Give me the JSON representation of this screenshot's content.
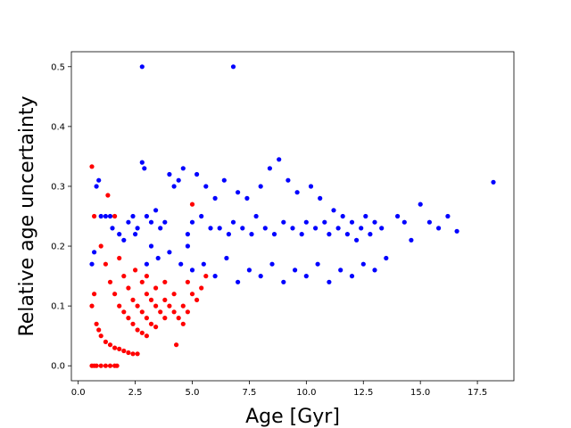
{
  "chart_data": {
    "type": "scatter",
    "xlabel": "Age [Gyr]",
    "ylabel": "Relative age uncertainty",
    "xlim": [
      -0.3,
      19.1
    ],
    "ylim": [
      -0.025,
      0.525
    ],
    "xticks": [
      "0.0",
      "2.5",
      "5.0",
      "7.5",
      "10.0",
      "12.5",
      "15.0",
      "17.5"
    ],
    "xtick_values": [
      0,
      2.5,
      5,
      7.5,
      10,
      12.5,
      15,
      17.5
    ],
    "yticks": [
      "0.0",
      "0.1",
      "0.2",
      "0.3",
      "0.4",
      "0.5"
    ],
    "ytick_values": [
      0,
      0.1,
      0.2,
      0.3,
      0.4,
      0.5
    ],
    "grid": false,
    "series": [
      {
        "color": "#0000ff",
        "points": [
          [
            2.8,
            0.5
          ],
          [
            6.8,
            0.5
          ],
          [
            18.2,
            0.307
          ],
          [
            1.0,
            0.25
          ],
          [
            1.2,
            0.25
          ],
          [
            1.4,
            0.25
          ],
          [
            0.8,
            0.3
          ],
          [
            0.9,
            0.31
          ],
          [
            0.6,
            0.17
          ],
          [
            0.7,
            0.19
          ],
          [
            1.5,
            0.23
          ],
          [
            1.8,
            0.22
          ],
          [
            2.0,
            0.21
          ],
          [
            2.2,
            0.24
          ],
          [
            2.4,
            0.25
          ],
          [
            2.6,
            0.23
          ],
          [
            2.8,
            0.34
          ],
          [
            2.9,
            0.33
          ],
          [
            3.0,
            0.25
          ],
          [
            3.2,
            0.24
          ],
          [
            3.4,
            0.26
          ],
          [
            3.6,
            0.23
          ],
          [
            3.8,
            0.24
          ],
          [
            4.0,
            0.32
          ],
          [
            4.2,
            0.3
          ],
          [
            4.4,
            0.31
          ],
          [
            4.6,
            0.33
          ],
          [
            4.8,
            0.22
          ],
          [
            5.0,
            0.24
          ],
          [
            5.2,
            0.32
          ],
          [
            5.4,
            0.25
          ],
          [
            5.6,
            0.3
          ],
          [
            5.8,
            0.23
          ],
          [
            6.0,
            0.28
          ],
          [
            6.2,
            0.23
          ],
          [
            6.4,
            0.31
          ],
          [
            6.6,
            0.22
          ],
          [
            6.8,
            0.24
          ],
          [
            7.0,
            0.29
          ],
          [
            7.2,
            0.23
          ],
          [
            7.4,
            0.28
          ],
          [
            7.6,
            0.22
          ],
          [
            7.8,
            0.25
          ],
          [
            8.0,
            0.3
          ],
          [
            8.2,
            0.23
          ],
          [
            8.4,
            0.33
          ],
          [
            8.6,
            0.22
          ],
          [
            8.8,
            0.345
          ],
          [
            9.0,
            0.24
          ],
          [
            9.2,
            0.31
          ],
          [
            9.4,
            0.23
          ],
          [
            9.6,
            0.29
          ],
          [
            9.8,
            0.22
          ],
          [
            10.0,
            0.24
          ],
          [
            10.2,
            0.3
          ],
          [
            10.4,
            0.23
          ],
          [
            10.6,
            0.28
          ],
          [
            10.8,
            0.24
          ],
          [
            11.0,
            0.22
          ],
          [
            11.2,
            0.26
          ],
          [
            11.4,
            0.23
          ],
          [
            11.6,
            0.25
          ],
          [
            11.8,
            0.22
          ],
          [
            12.0,
            0.24
          ],
          [
            12.2,
            0.21
          ],
          [
            12.4,
            0.23
          ],
          [
            12.6,
            0.25
          ],
          [
            12.8,
            0.22
          ],
          [
            13.0,
            0.24
          ],
          [
            13.3,
            0.23
          ],
          [
            14.0,
            0.25
          ],
          [
            14.3,
            0.24
          ],
          [
            14.6,
            0.21
          ],
          [
            15.0,
            0.27
          ],
          [
            15.4,
            0.24
          ],
          [
            15.8,
            0.23
          ],
          [
            16.2,
            0.25
          ],
          [
            16.6,
            0.225
          ],
          [
            3.0,
            0.17
          ],
          [
            3.5,
            0.18
          ],
          [
            4.0,
            0.19
          ],
          [
            4.5,
            0.17
          ],
          [
            5.0,
            0.16
          ],
          [
            5.5,
            0.17
          ],
          [
            6.0,
            0.15
          ],
          [
            6.5,
            0.18
          ],
          [
            7.0,
            0.14
          ],
          [
            7.5,
            0.16
          ],
          [
            8.0,
            0.15
          ],
          [
            8.5,
            0.17
          ],
          [
            9.0,
            0.14
          ],
          [
            9.5,
            0.16
          ],
          [
            10.0,
            0.15
          ],
          [
            10.5,
            0.17
          ],
          [
            11.0,
            0.14
          ],
          [
            11.5,
            0.16
          ],
          [
            12.0,
            0.15
          ],
          [
            12.5,
            0.17
          ],
          [
            13.0,
            0.16
          ],
          [
            13.5,
            0.18
          ],
          [
            2.5,
            0.22
          ],
          [
            3.2,
            0.2
          ],
          [
            4.8,
            0.2
          ]
        ]
      },
      {
        "color": "#ff0000",
        "points": [
          [
            0.6,
            0.333
          ],
          [
            0.7,
            0.25
          ],
          [
            0.6,
            0.1
          ],
          [
            0.7,
            0.12
          ],
          [
            0.8,
            0.07
          ],
          [
            0.9,
            0.06
          ],
          [
            1.0,
            0.05
          ],
          [
            1.2,
            0.04
          ],
          [
            1.4,
            0.035
          ],
          [
            1.6,
            0.03
          ],
          [
            1.8,
            0.028
          ],
          [
            2.0,
            0.025
          ],
          [
            2.2,
            0.022
          ],
          [
            2.4,
            0.02
          ],
          [
            2.6,
            0.02
          ],
          [
            0.6,
            0.0
          ],
          [
            0.7,
            0.0
          ],
          [
            0.8,
            0.0
          ],
          [
            1.0,
            0.0
          ],
          [
            1.2,
            0.0
          ],
          [
            1.4,
            0.0
          ],
          [
            1.6,
            0.0
          ],
          [
            1.7,
            0.0
          ],
          [
            1.0,
            0.2
          ],
          [
            1.2,
            0.17
          ],
          [
            1.4,
            0.14
          ],
          [
            1.6,
            0.12
          ],
          [
            1.8,
            0.1
          ],
          [
            2.0,
            0.09
          ],
          [
            2.2,
            0.08
          ],
          [
            2.4,
            0.07
          ],
          [
            2.6,
            0.06
          ],
          [
            2.8,
            0.055
          ],
          [
            3.0,
            0.05
          ],
          [
            1.3,
            0.285
          ],
          [
            1.6,
            0.25
          ],
          [
            1.8,
            0.18
          ],
          [
            2.0,
            0.15
          ],
          [
            2.2,
            0.13
          ],
          [
            2.4,
            0.11
          ],
          [
            2.6,
            0.1
          ],
          [
            2.8,
            0.09
          ],
          [
            3.0,
            0.08
          ],
          [
            3.2,
            0.07
          ],
          [
            3.4,
            0.065
          ],
          [
            2.5,
            0.16
          ],
          [
            2.8,
            0.14
          ],
          [
            3.0,
            0.12
          ],
          [
            3.2,
            0.11
          ],
          [
            3.4,
            0.1
          ],
          [
            3.6,
            0.09
          ],
          [
            3.8,
            0.08
          ],
          [
            3.0,
            0.15
          ],
          [
            3.4,
            0.13
          ],
          [
            3.8,
            0.11
          ],
          [
            4.0,
            0.1
          ],
          [
            4.2,
            0.09
          ],
          [
            4.4,
            0.08
          ],
          [
            3.8,
            0.14
          ],
          [
            4.2,
            0.12
          ],
          [
            4.6,
            0.1
          ],
          [
            4.8,
            0.09
          ],
          [
            4.3,
            0.035
          ],
          [
            4.8,
            0.14
          ],
          [
            5.0,
            0.12
          ],
          [
            5.2,
            0.11
          ],
          [
            5.4,
            0.13
          ],
          [
            5.6,
            0.15
          ],
          [
            5.0,
            0.27
          ],
          [
            4.6,
            0.07
          ]
        ]
      }
    ]
  }
}
